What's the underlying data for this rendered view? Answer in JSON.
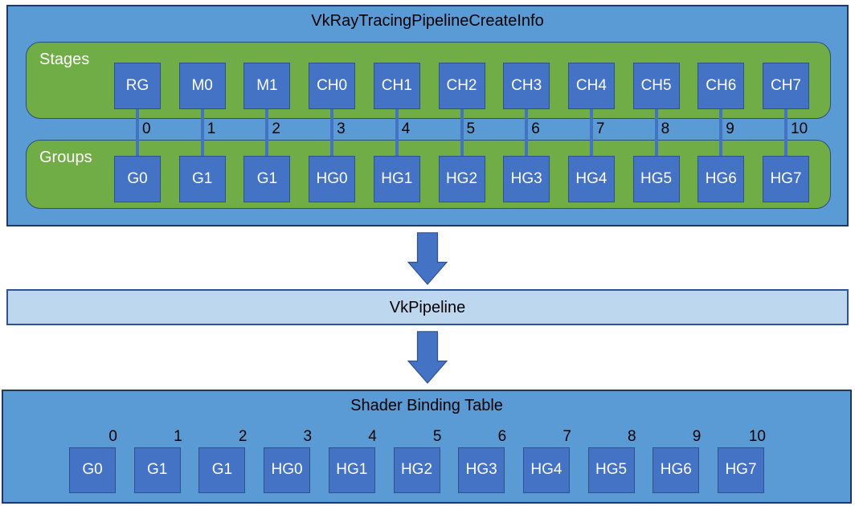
{
  "colors": {
    "canvas_bg": "#ffffff",
    "panel_blue": "#5b9bd5",
    "panel_border": "#1f3864",
    "green": "#70ad47",
    "green_border": "#2e4d78",
    "box_blue": "#4472c4",
    "box_border": "#2f528f",
    "light_blue": "#bdd7ee",
    "light_blue_border": "#2e5395",
    "text_dark": "#000000",
    "text_light": "#ffffff"
  },
  "create_info": {
    "title": "VkRayTracingPipelineCreateInfo",
    "stages": {
      "label": "Stages",
      "items": [
        "RG",
        "M0",
        "M1",
        "CH0",
        "CH1",
        "CH2",
        "CH3",
        "CH4",
        "CH5",
        "CH6",
        "CH7"
      ]
    },
    "groups": {
      "label": "Groups",
      "items": [
        "G0",
        "G1",
        "G1",
        "HG0",
        "HG1",
        "HG2",
        "HG3",
        "HG4",
        "HG5",
        "HG6",
        "HG7"
      ]
    },
    "indices": [
      "0",
      "1",
      "2",
      "3",
      "4",
      "5",
      "6",
      "7",
      "8",
      "9",
      "10"
    ]
  },
  "pipeline": {
    "label": "VkPipeline"
  },
  "sbt": {
    "title": "Shader Binding Table",
    "indices": [
      "0",
      "1",
      "2",
      "3",
      "4",
      "5",
      "6",
      "7",
      "8",
      "9",
      "10"
    ],
    "items": [
      "G0",
      "G1",
      "G1",
      "HG0",
      "HG1",
      "HG2",
      "HG3",
      "HG4",
      "HG5",
      "HG6",
      "HG7"
    ]
  }
}
